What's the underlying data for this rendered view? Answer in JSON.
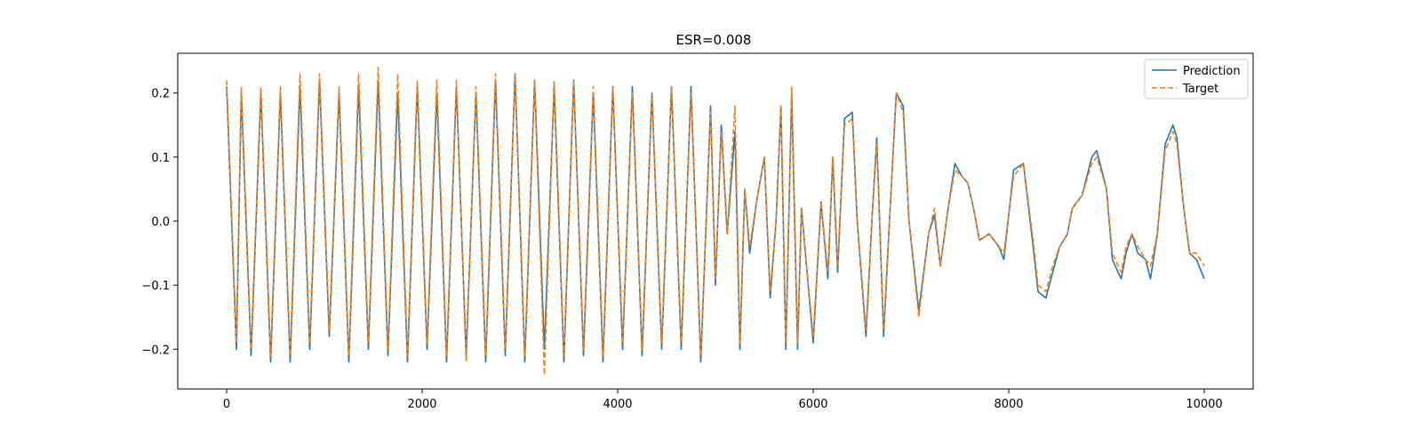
{
  "chart_data": {
    "type": "line",
    "title": "ESR=0.008",
    "xlabel": "",
    "ylabel": "",
    "xlim": [
      -500,
      10500
    ],
    "ylim": [
      -0.262,
      0.262
    ],
    "xticks": [
      0,
      2000,
      4000,
      6000,
      8000,
      10000
    ],
    "xtick_labels": [
      "0",
      "2000",
      "4000",
      "6000",
      "8000",
      "10000"
    ],
    "yticks": [
      -0.2,
      -0.1,
      0.0,
      0.1,
      0.2
    ],
    "ytick_labels": [
      "−0.2",
      "−0.1",
      "0.0",
      "0.1",
      "0.2"
    ],
    "grid": false,
    "legend_position": "top-right",
    "series": [
      {
        "name": "Prediction",
        "color": "#1f77b4",
        "style": "solid",
        "x": [
          0,
          100,
          150,
          250,
          350,
          450,
          550,
          650,
          750,
          850,
          950,
          1050,
          1150,
          1250,
          1350,
          1450,
          1550,
          1650,
          1750,
          1850,
          1950,
          2050,
          2150,
          2250,
          2350,
          2450,
          2550,
          2650,
          2750,
          2850,
          2950,
          3050,
          3150,
          3250,
          3350,
          3450,
          3550,
          3650,
          3750,
          3850,
          3950,
          4050,
          4150,
          4250,
          4350,
          4450,
          4550,
          4650,
          4750,
          4850,
          4950,
          5000,
          5060,
          5120,
          5200,
          5250,
          5300,
          5350,
          5420,
          5500,
          5560,
          5620,
          5670,
          5720,
          5780,
          5840,
          5880,
          5920,
          6000,
          6080,
          6150,
          6200,
          6250,
          6320,
          6400,
          6450,
          6540,
          6600,
          6650,
          6720,
          6780,
          6850,
          6920,
          6980,
          7080,
          7180,
          7240,
          7300,
          7380,
          7450,
          7520,
          7580,
          7640,
          7700,
          7800,
          7900,
          7950,
          8050,
          8150,
          8250,
          8300,
          8380,
          8450,
          8520,
          8600,
          8650,
          8750,
          8850,
          8900,
          9000,
          9060,
          9150,
          9200,
          9260,
          9320,
          9400,
          9450,
          9520,
          9600,
          9680,
          9720,
          9790,
          9850,
          9920,
          10000
        ],
        "y": [
          0.21,
          -0.2,
          0.2,
          -0.21,
          0.2,
          -0.22,
          0.2,
          -0.22,
          0.21,
          -0.2,
          0.22,
          -0.18,
          0.2,
          -0.22,
          0.21,
          -0.2,
          0.22,
          -0.21,
          0.2,
          -0.22,
          0.21,
          -0.2,
          0.2,
          -0.22,
          0.21,
          -0.21,
          0.2,
          -0.22,
          0.22,
          -0.21,
          0.23,
          -0.22,
          0.22,
          -0.2,
          0.21,
          -0.22,
          0.22,
          -0.21,
          0.2,
          -0.22,
          0.21,
          -0.2,
          0.21,
          -0.21,
          0.2,
          -0.2,
          0.21,
          -0.2,
          0.21,
          -0.22,
          0.18,
          -0.1,
          0.15,
          -0.02,
          0.14,
          -0.2,
          0.05,
          -0.05,
          0.03,
          0.1,
          -0.12,
          0.0,
          0.18,
          -0.2,
          0.2,
          -0.2,
          0.02,
          -0.05,
          -0.19,
          0.03,
          -0.09,
          0.1,
          -0.08,
          0.16,
          0.17,
          0.0,
          -0.18,
          0.0,
          0.13,
          -0.18,
          0.0,
          0.2,
          0.18,
          0.0,
          -0.14,
          -0.02,
          0.01,
          -0.07,
          0.02,
          0.09,
          0.07,
          0.06,
          0.02,
          -0.03,
          -0.02,
          -0.04,
          -0.06,
          0.08,
          0.09,
          -0.04,
          -0.11,
          -0.12,
          -0.08,
          -0.04,
          -0.02,
          0.02,
          0.04,
          0.1,
          0.11,
          0.05,
          -0.06,
          -0.09,
          -0.05,
          -0.02,
          -0.05,
          -0.06,
          -0.09,
          -0.02,
          0.12,
          0.15,
          0.13,
          0.02,
          -0.05,
          -0.06,
          -0.09
        ]
      },
      {
        "name": "Target",
        "color": "#ff7f0e",
        "style": "dashed",
        "x": [
          0,
          100,
          150,
          250,
          350,
          450,
          550,
          650,
          750,
          850,
          950,
          1050,
          1150,
          1250,
          1350,
          1450,
          1550,
          1650,
          1750,
          1850,
          1950,
          2050,
          2150,
          2250,
          2350,
          2450,
          2550,
          2650,
          2750,
          2850,
          2950,
          3050,
          3150,
          3250,
          3350,
          3450,
          3550,
          3650,
          3750,
          3850,
          3950,
          4050,
          4150,
          4250,
          4350,
          4450,
          4550,
          4650,
          4750,
          4850,
          4950,
          5000,
          5060,
          5120,
          5200,
          5250,
          5300,
          5350,
          5420,
          5500,
          5560,
          5620,
          5670,
          5720,
          5780,
          5840,
          5880,
          5920,
          6000,
          6080,
          6150,
          6200,
          6250,
          6320,
          6400,
          6450,
          6540,
          6600,
          6650,
          6720,
          6780,
          6850,
          6920,
          6980,
          7080,
          7180,
          7240,
          7300,
          7380,
          7450,
          7520,
          7580,
          7640,
          7700,
          7800,
          7900,
          7950,
          8050,
          8150,
          8250,
          8300,
          8380,
          8450,
          8520,
          8600,
          8650,
          8750,
          8850,
          8900,
          9000,
          9060,
          9150,
          9200,
          9260,
          9320,
          9400,
          9450,
          9520,
          9600,
          9680,
          9720,
          9790,
          9850,
          9920,
          10000
        ],
        "y": [
          0.22,
          -0.19,
          0.21,
          -0.2,
          0.21,
          -0.21,
          0.21,
          -0.21,
          0.23,
          -0.19,
          0.23,
          -0.17,
          0.21,
          -0.21,
          0.23,
          -0.19,
          0.24,
          -0.2,
          0.23,
          -0.21,
          0.22,
          -0.19,
          0.22,
          -0.21,
          0.22,
          -0.22,
          0.21,
          -0.21,
          0.23,
          -0.2,
          0.23,
          -0.21,
          0.22,
          -0.24,
          0.22,
          -0.21,
          0.22,
          -0.2,
          0.21,
          -0.21,
          0.21,
          -0.19,
          0.2,
          -0.2,
          0.2,
          -0.19,
          0.21,
          -0.19,
          0.2,
          -0.21,
          0.17,
          -0.09,
          0.14,
          -0.02,
          0.18,
          -0.19,
          0.05,
          -0.04,
          0.03,
          0.1,
          -0.11,
          0.0,
          0.18,
          -0.19,
          0.21,
          -0.19,
          0.02,
          -0.05,
          -0.18,
          0.03,
          -0.08,
          0.1,
          -0.07,
          0.15,
          0.16,
          0.0,
          -0.17,
          0.0,
          0.12,
          -0.17,
          0.0,
          0.2,
          0.17,
          0.0,
          -0.15,
          -0.02,
          0.02,
          -0.07,
          0.02,
          0.08,
          0.07,
          0.06,
          0.02,
          -0.03,
          -0.02,
          -0.04,
          -0.05,
          0.07,
          0.09,
          -0.03,
          -0.1,
          -0.11,
          -0.07,
          -0.04,
          -0.02,
          0.02,
          0.04,
          0.09,
          0.1,
          0.05,
          -0.05,
          -0.08,
          -0.04,
          -0.02,
          -0.04,
          -0.06,
          -0.07,
          -0.02,
          0.11,
          0.14,
          0.12,
          0.02,
          -0.05,
          -0.05,
          -0.07
        ]
      }
    ]
  }
}
